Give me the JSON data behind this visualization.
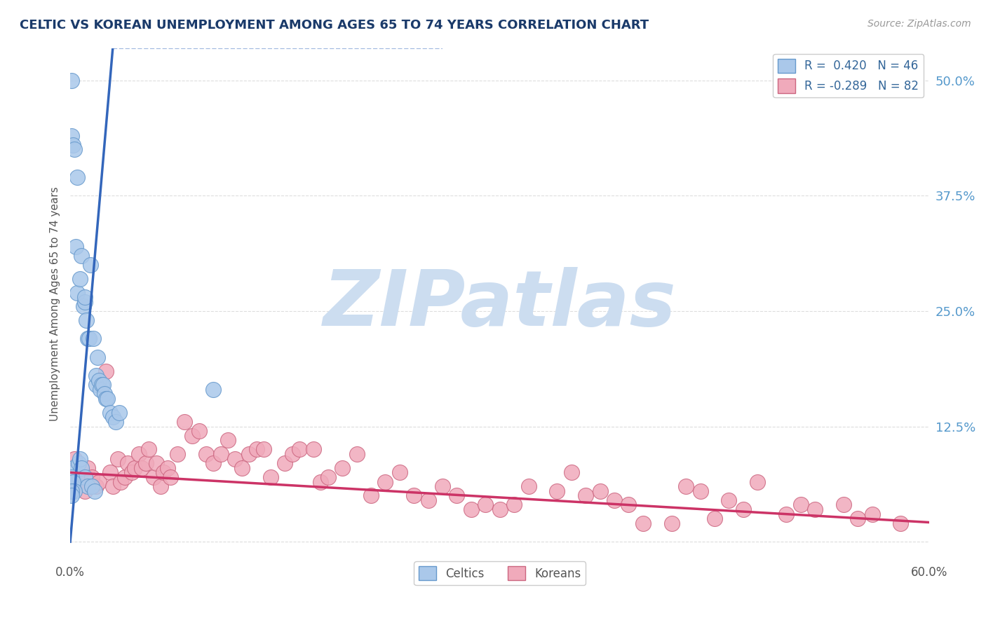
{
  "title": "CELTIC VS KOREAN UNEMPLOYMENT AMONG AGES 65 TO 74 YEARS CORRELATION CHART",
  "source": "Source: ZipAtlas.com",
  "ylabel": "Unemployment Among Ages 65 to 74 years",
  "xlim": [
    0.0,
    0.6
  ],
  "ylim": [
    -0.02,
    0.535
  ],
  "xticks": [
    0.0,
    0.1,
    0.2,
    0.3,
    0.4,
    0.5,
    0.6
  ],
  "xticklabels": [
    "0.0%",
    "",
    "",
    "",
    "",
    "",
    "60.0%"
  ],
  "ytick_positions": [
    0.0,
    0.125,
    0.25,
    0.375,
    0.5
  ],
  "yticklabels": [
    "",
    "12.5%",
    "25.0%",
    "37.5%",
    "50.0%"
  ],
  "R_celtic": 0.42,
  "N_celtic": 46,
  "R_korean": -0.289,
  "N_korean": 82,
  "legend_label_celtic": "Celtics",
  "legend_label_korean": "Koreans",
  "celtic_color": "#aac8ea",
  "celtic_edge_color": "#6699cc",
  "korean_color": "#f0aabb",
  "korean_edge_color": "#cc6680",
  "trend_celtic_color": "#3366bb",
  "trend_korean_color": "#cc3366",
  "watermark_text": "ZIPatlas",
  "watermark_color": "#ccddf0",
  "title_color": "#1a3a6a",
  "source_color": "#999999",
  "background_color": "#ffffff",
  "grid_color": "#dddddd",
  "celtic_x": [
    0.001,
    0.001,
    0.002,
    0.002,
    0.003,
    0.003,
    0.004,
    0.005,
    0.005,
    0.006,
    0.007,
    0.007,
    0.008,
    0.008,
    0.009,
    0.01,
    0.01,
    0.01,
    0.011,
    0.012,
    0.012,
    0.013,
    0.014,
    0.015,
    0.016,
    0.017,
    0.018,
    0.018,
    0.019,
    0.02,
    0.021,
    0.022,
    0.023,
    0.024,
    0.025,
    0.026,
    0.028,
    0.03,
    0.032,
    0.034,
    0.001,
    0.002,
    0.003,
    0.1,
    0.001,
    0.001
  ],
  "celtic_y": [
    0.5,
    0.44,
    0.43,
    0.08,
    0.425,
    0.065,
    0.32,
    0.395,
    0.27,
    0.085,
    0.285,
    0.09,
    0.31,
    0.08,
    0.255,
    0.26,
    0.265,
    0.07,
    0.24,
    0.22,
    0.06,
    0.22,
    0.3,
    0.06,
    0.22,
    0.055,
    0.17,
    0.18,
    0.2,
    0.175,
    0.165,
    0.17,
    0.17,
    0.16,
    0.155,
    0.155,
    0.14,
    0.135,
    0.13,
    0.14,
    0.07,
    0.065,
    0.055,
    0.165,
    0.055,
    0.05
  ],
  "korean_x": [
    0.003,
    0.005,
    0.008,
    0.01,
    0.012,
    0.015,
    0.018,
    0.02,
    0.025,
    0.028,
    0.03,
    0.033,
    0.035,
    0.038,
    0.04,
    0.043,
    0.045,
    0.048,
    0.05,
    0.053,
    0.055,
    0.058,
    0.06,
    0.063,
    0.065,
    0.068,
    0.07,
    0.075,
    0.08,
    0.085,
    0.09,
    0.095,
    0.1,
    0.105,
    0.11,
    0.115,
    0.12,
    0.125,
    0.13,
    0.135,
    0.14,
    0.15,
    0.155,
    0.16,
    0.17,
    0.175,
    0.18,
    0.19,
    0.2,
    0.21,
    0.22,
    0.23,
    0.24,
    0.25,
    0.26,
    0.27,
    0.28,
    0.29,
    0.3,
    0.31,
    0.32,
    0.34,
    0.35,
    0.36,
    0.37,
    0.38,
    0.39,
    0.4,
    0.42,
    0.43,
    0.44,
    0.45,
    0.46,
    0.47,
    0.48,
    0.5,
    0.51,
    0.52,
    0.54,
    0.55,
    0.56,
    0.58
  ],
  "korean_y": [
    0.09,
    0.065,
    0.075,
    0.055,
    0.08,
    0.07,
    0.06,
    0.065,
    0.185,
    0.075,
    0.06,
    0.09,
    0.065,
    0.07,
    0.085,
    0.075,
    0.08,
    0.095,
    0.08,
    0.085,
    0.1,
    0.07,
    0.085,
    0.06,
    0.075,
    0.08,
    0.07,
    0.095,
    0.13,
    0.115,
    0.12,
    0.095,
    0.085,
    0.095,
    0.11,
    0.09,
    0.08,
    0.095,
    0.1,
    0.1,
    0.07,
    0.085,
    0.095,
    0.1,
    0.1,
    0.065,
    0.07,
    0.08,
    0.095,
    0.05,
    0.065,
    0.075,
    0.05,
    0.045,
    0.06,
    0.05,
    0.035,
    0.04,
    0.035,
    0.04,
    0.06,
    0.055,
    0.075,
    0.05,
    0.055,
    0.045,
    0.04,
    0.02,
    0.02,
    0.06,
    0.055,
    0.025,
    0.045,
    0.035,
    0.065,
    0.03,
    0.04,
    0.035,
    0.04,
    0.025,
    0.03,
    0.02
  ],
  "trend_celtic_x0": 0.0,
  "trend_celtic_y0": 0.0,
  "trend_slope_celtic": 18.0,
  "trend_korean_x0": 0.0,
  "trend_korean_y0": 0.075,
  "trend_slope_korean": -0.09
}
